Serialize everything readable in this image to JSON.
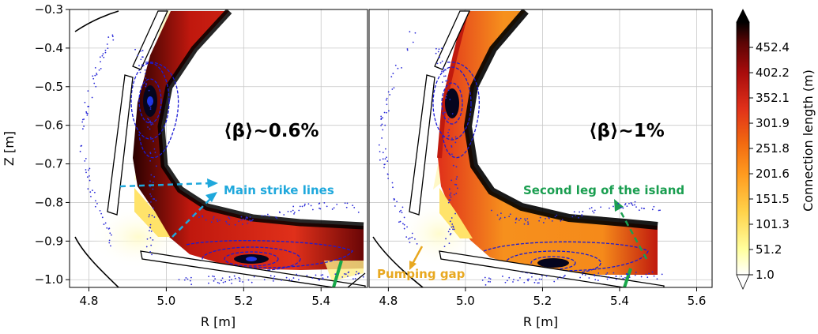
{
  "chart_data": [
    {
      "type": "heatmap",
      "panel": "left",
      "annotation_beta": "⟨β⟩~0.6%",
      "xlabel": "R [m]",
      "ylabel": "Z [m]",
      "xlim": [
        4.75,
        5.52
      ],
      "ylim": [
        -1.02,
        -0.3
      ],
      "xticks": [
        4.8,
        5.0,
        5.2,
        5.4
      ],
      "xtick_labels": [
        "4.8",
        "5.0",
        "5.2",
        "5.4"
      ],
      "yticks": [
        -0.3,
        -0.4,
        -0.5,
        -0.6,
        -0.7,
        -0.8,
        -0.9,
        -1.0
      ],
      "ytick_labels": [
        "−0.3",
        "−0.4",
        "−0.5",
        "−0.6",
        "−0.7",
        "−0.8",
        "−0.9",
        "−1.0"
      ],
      "grid": true,
      "annotations": [
        {
          "text": "Main strike lines",
          "color": "#1fa8dc"
        }
      ],
      "island_o_points": [
        {
          "R": 4.96,
          "Z": -0.53
        },
        {
          "R": 5.24,
          "Z": -0.95
        }
      ]
    },
    {
      "type": "heatmap",
      "panel": "right",
      "annotation_beta": "⟨β⟩~1%",
      "xlabel": "R [m]",
      "xlim": [
        4.75,
        5.64
      ],
      "ylim": [
        -1.02,
        -0.3
      ],
      "xticks": [
        4.8,
        5.0,
        5.2,
        5.4,
        5.6
      ],
      "xtick_labels": [
        "4.8",
        "5.0",
        "5.2",
        "5.4",
        "5.6"
      ],
      "grid": true,
      "annotations": [
        {
          "text": "Second leg of the island",
          "color": "#1a9e50"
        },
        {
          "text": "Pumping gap",
          "color": "#e8a820"
        }
      ],
      "island_o_points": [
        {
          "R": 4.96,
          "Z": -0.54
        },
        {
          "R": 5.22,
          "Z": -0.96
        }
      ]
    }
  ],
  "colorbar": {
    "label": "Connection length (m)",
    "ticks": [
      1.0,
      51.2,
      101.3,
      151.5,
      201.6,
      251.8,
      301.9,
      352.1,
      402.2,
      452.4
    ],
    "tick_labels": [
      "1.0",
      "51.2",
      "101.3",
      "151.5",
      "201.6",
      "251.8",
      "301.9",
      "352.1",
      "402.2",
      "452.4"
    ],
    "range": [
      1.0,
      502.6
    ],
    "colormap": [
      "#ffffff",
      "#ffff9e",
      "#ffd24a",
      "#ff9a1f",
      "#f26a10",
      "#e0301a",
      "#a80c0c",
      "#5a0404",
      "#000000"
    ]
  }
}
